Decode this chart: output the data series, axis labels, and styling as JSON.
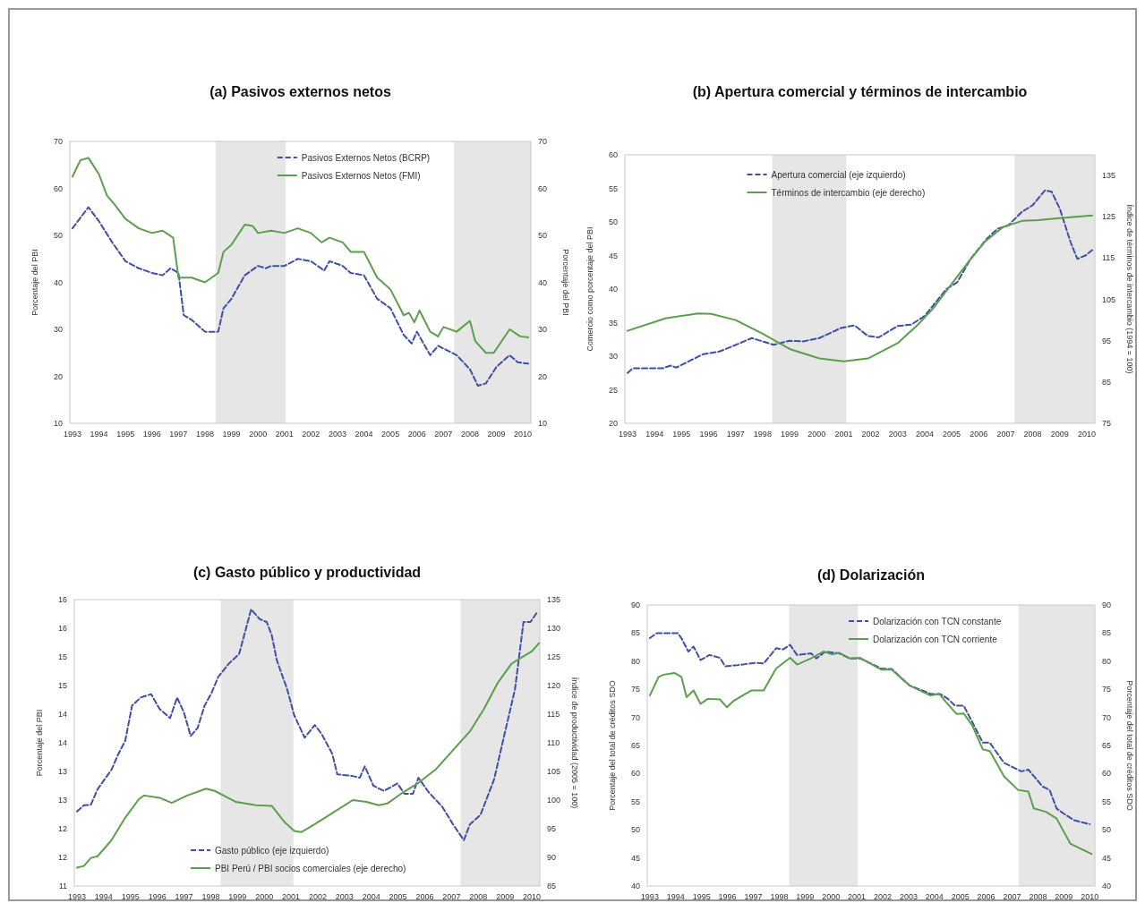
{
  "chart_data": [
    {
      "type": "line",
      "title": "(a) Pasivos externos netos",
      "ylabel": "Porcentaje del PBI",
      "y2label": "Porcentaje del PBI",
      "xlim": [
        1992.9,
        2010.3
      ],
      "xticks": [
        1993,
        1994,
        1995,
        1996,
        1997,
        1998,
        1999,
        2000,
        2001,
        2002,
        2003,
        2004,
        2005,
        2006,
        2007,
        2008,
        2009,
        2010
      ],
      "ylim": [
        10,
        70
      ],
      "yticks": [
        10,
        20,
        30,
        40,
        50,
        60,
        70
      ],
      "y2lim": [
        10,
        70
      ],
      "y2ticks": [
        10,
        20,
        30,
        40,
        50,
        60,
        70
      ],
      "legend": "top",
      "grid": false,
      "bands": [
        {
          "axis": "x",
          "from": 1998.4,
          "to": 2001.05,
          "color": "#e6e6e6"
        },
        {
          "axis": "x",
          "from": 2007.4,
          "to": 2010.3,
          "color": "#e6e6e6"
        }
      ],
      "series": [
        {
          "name": "Pasivos Externos Netos (BCRP)",
          "color": "#3f4fa6",
          "line_style": "dashed",
          "x": [
            1993,
            1993.6,
            1994,
            1994.5,
            1995,
            1995.5,
            1996,
            1996.4,
            1996.7,
            1997,
            1997.2,
            1997.5,
            1998,
            1998.5,
            1998.7,
            1999,
            1999.5,
            2000,
            2000.3,
            2000.5,
            2001,
            2001.5,
            2002,
            2002.5,
            2002.7,
            2003.2,
            2003.5,
            2004,
            2004.5,
            2005,
            2005.5,
            2005.8,
            2006,
            2006.5,
            2006.8,
            2007.5,
            2008,
            2008.3,
            2008.6,
            2009,
            2009.5,
            2009.8,
            2010.2
          ],
          "values": [
            51.5,
            56,
            53,
            48.5,
            44.5,
            43,
            42,
            41.5,
            43,
            42,
            33,
            32,
            29.5,
            29.5,
            34.5,
            36.5,
            41.5,
            43.5,
            43,
            43.5,
            43.5,
            45,
            44.5,
            42.5,
            44.5,
            43.5,
            42,
            41.5,
            36.5,
            34.5,
            28.8,
            27,
            29.5,
            24.5,
            26.5,
            24.5,
            21.5,
            18,
            18.5,
            22,
            24.5,
            23,
            22.7
          ]
        },
        {
          "name": "Pasivos Externos Netos (FMI)",
          "color": "#5c9e4c",
          "line_style": "solid",
          "x": [
            1993,
            1993.3,
            1993.6,
            1994,
            1994.3,
            1994.6,
            1995,
            1995.5,
            1996,
            1996.4,
            1996.8,
            1997,
            1997.5,
            1998,
            1998.5,
            1998.7,
            1999,
            1999.5,
            1999.8,
            2000,
            2000.5,
            2001,
            2001.5,
            2002,
            2002.4,
            2002.7,
            2003.2,
            2003.5,
            2004,
            2004.5,
            2005,
            2005.5,
            2005.7,
            2005.9,
            2006.1,
            2006.5,
            2006.8,
            2007,
            2007.5,
            2008,
            2008.2,
            2008.6,
            2008.9,
            2009.5,
            2009.9,
            2010.2
          ],
          "values": [
            62.5,
            66,
            66.5,
            63,
            58.5,
            56.5,
            53.5,
            51.5,
            50.5,
            51,
            49.5,
            41,
            41,
            40,
            42,
            46.5,
            48,
            52.3,
            52,
            50.5,
            51,
            50.5,
            51.5,
            50.5,
            48.5,
            49.5,
            48.5,
            46.5,
            46.5,
            41,
            38.5,
            33,
            33.5,
            31.5,
            34,
            29.5,
            28.5,
            30.5,
            29.5,
            31.8,
            27.5,
            25,
            25,
            30,
            28.5,
            28.3
          ]
        }
      ]
    },
    {
      "type": "line",
      "title": "(b) Apertura comercial y términos de intercambio",
      "ylabel": "Comercio como porcentaje del PBI",
      "y2label": "Índice de términos de intercambio (1994 = 100)",
      "xlim": [
        1992.9,
        2010.3
      ],
      "xticks": [
        1993,
        1994,
        1995,
        1996,
        1997,
        1998,
        1999,
        2000,
        2001,
        2002,
        2003,
        2004,
        2005,
        2006,
        2007,
        2008,
        2009,
        2010
      ],
      "ylim": [
        20,
        60
      ],
      "yticks": [
        20,
        25,
        30,
        35,
        40,
        45,
        50,
        55,
        60
      ],
      "y2lim": [
        75,
        140
      ],
      "y2ticks": [
        75,
        85,
        95,
        105,
        115,
        125,
        135
      ],
      "legend": "top left",
      "grid": false,
      "bands": [
        {
          "axis": "x",
          "from": 1998.35,
          "to": 2001.1,
          "color": "#e6e6e6"
        },
        {
          "axis": "x",
          "from": 2007.33,
          "to": 2010.3,
          "color": "#e6e6e6"
        }
      ],
      "series": [
        {
          "name": "Apertura comercial (eje izquierdo)",
          "color": "#3f4fa6",
          "line_style": "dashed",
          "x": [
            1993,
            1993.2,
            1994.3,
            1994.6,
            1994.8,
            1995.8,
            1996.4,
            1996.9,
            1997.6,
            1998.4,
            1999,
            1999.5,
            2000.1,
            2000.9,
            2001.4,
            2001.9,
            2002.3,
            2003,
            2003.5,
            2004,
            2004.8,
            2005.2,
            2005.7,
            2006.3,
            2006.7,
            2007.1,
            2007.6,
            2008,
            2008.45,
            2008.7,
            2009,
            2009.4,
            2009.65,
            2009.95,
            2010.2
          ],
          "values": [
            27.5,
            28.2,
            28.2,
            28.6,
            28.3,
            30.3,
            30.7,
            31.5,
            32.7,
            31.7,
            32.3,
            32.2,
            32.7,
            34.2,
            34.6,
            33,
            32.8,
            34.5,
            34.7,
            36,
            40,
            41,
            44.5,
            47.5,
            49,
            49.5,
            51.5,
            52.5,
            54.7,
            54.5,
            52,
            47,
            44.5,
            45,
            45.8
          ]
        },
        {
          "name": "Términos de intercambio (eje derecho)",
          "color": "#5c9e4c",
          "line_style": "solid",
          "axis": "y2",
          "x": [
            1993,
            1994.4,
            1995.6,
            1996.1,
            1997,
            1998,
            1999,
            2000.1,
            2001,
            2001.9,
            2003,
            2003.75,
            2004.3,
            2004.9,
            2005.6,
            2006.25,
            2006.9,
            2007.6,
            2008.2,
            2008.9,
            2010.2
          ],
          "values": [
            97.4,
            100.4,
            101.6,
            101.5,
            100,
            96.7,
            93,
            90.7,
            90,
            90.7,
            94.4,
            98.9,
            102.7,
            107.9,
            113.9,
            119.1,
            122.5,
            124,
            124.2,
            124.6,
            125.3
          ]
        }
      ]
    },
    {
      "type": "line",
      "title": "(c) Gasto público y productividad",
      "ylabel": "Porcentaje del PBI",
      "y2label": "Índice de productividad (2005 = 100)",
      "xlim": [
        1992.9,
        2010.3
      ],
      "xticks": [
        1993,
        1994,
        1995,
        1996,
        1997,
        1998,
        1999,
        2000,
        2001,
        2002,
        2003,
        2004,
        2005,
        2006,
        2007,
        2008,
        2009,
        2010
      ],
      "ylim": [
        11,
        16
      ],
      "yticks": [
        11,
        {
          "value": 11.5,
          "label": "12"
        },
        {
          "value": 12,
          "label": "12"
        },
        {
          "value": 12.5,
          "label": "13"
        },
        {
          "value": 13,
          "label": "13"
        },
        {
          "value": 13.5,
          "label": "14"
        },
        {
          "value": 14,
          "label": "14"
        },
        {
          "value": 14.5,
          "label": "15"
        },
        {
          "value": 15,
          "label": "15"
        },
        {
          "value": 15.5,
          "label": "16"
        },
        {
          "value": 16,
          "label": "16"
        }
      ],
      "y2lim": [
        85,
        135
      ],
      "y2ticks": [
        85,
        90,
        95,
        100,
        105,
        110,
        115,
        120,
        125,
        130,
        135
      ],
      "legend": "bottom",
      "grid": false,
      "bands": [
        {
          "axis": "x",
          "from": 1998.37,
          "to": 2001.09,
          "color": "#e6e6e6"
        },
        {
          "axis": "x",
          "from": 2007.34,
          "to": 2010.3,
          "color": "#e6e6e6"
        }
      ],
      "series": [
        {
          "name": "Gasto público (eje izquierdo)",
          "color": "#3f4fa6",
          "line_style": "dashed",
          "x": [
            1993,
            1993.26,
            1993.52,
            1993.77,
            1994.29,
            1994.55,
            1994.8,
            1995.06,
            1995.38,
            1995.77,
            1996.09,
            1996.48,
            1996.74,
            1996.99,
            1997.25,
            1997.51,
            1997.77,
            1998.03,
            1998.28,
            1998.67,
            1999.06,
            1999.51,
            1999.83,
            2000.09,
            2000.28,
            2000.47,
            2000.86,
            2001.12,
            2001.51,
            2001.89,
            2002.15,
            2002.54,
            2002.73,
            2003.31,
            2003.57,
            2003.76,
            2004.08,
            2004.47,
            2004.98,
            2005.24,
            2005.56,
            2005.76,
            2006.14,
            2006.66,
            2007.05,
            2007.46,
            2007.69,
            2008.08,
            2008.59,
            2008.98,
            2009.37,
            2009.69,
            2009.95,
            2010.2
          ],
          "values": [
            12.3,
            12.41,
            12.42,
            12.69,
            13.03,
            13.31,
            13.53,
            14.15,
            14.29,
            14.35,
            14.09,
            13.93,
            14.29,
            14.04,
            13.62,
            13.76,
            14.15,
            14.37,
            14.65,
            14.88,
            15.05,
            15.83,
            15.66,
            15.61,
            15.38,
            14.94,
            14.43,
            13.98,
            13.59,
            13.81,
            13.65,
            13.31,
            12.95,
            12.92,
            12.89,
            13.09,
            12.75,
            12.66,
            12.79,
            12.61,
            12.61,
            12.89,
            12.64,
            12.38,
            12.08,
            11.8,
            12.08,
            12.24,
            12.86,
            13.65,
            14.43,
            15.61,
            15.61,
            15.78
          ]
        },
        {
          "name": "PBI Perú / PBI socios comerciales (eje derecho)",
          "color": "#5c9e4c",
          "line_style": "solid",
          "axis": "y2",
          "x": [
            1993,
            1993.26,
            1993.52,
            1993.77,
            1994.29,
            1994.8,
            1995.32,
            1995.51,
            1996.09,
            1996.54,
            1997.12,
            1997.83,
            1998.15,
            1998.93,
            1999.7,
            2000.28,
            2000.73,
            2001.12,
            2001.38,
            2001.89,
            2002.54,
            2003.31,
            2003.82,
            2004.28,
            2004.6,
            2005.11,
            2005.76,
            2006.4,
            2007.05,
            2007.69,
            2008.21,
            2008.72,
            2009.24,
            2009.62,
            2010.01,
            2010.27
          ],
          "values": [
            88.2,
            88.5,
            89.9,
            90.2,
            93,
            96.9,
            100.2,
            100.8,
            100.4,
            99.5,
            100.8,
            102,
            101.6,
            99.7,
            99.1,
            99,
            96.3,
            94.6,
            94.4,
            95.8,
            97.7,
            100,
            99.7,
            99.1,
            99.4,
            101.1,
            103,
            105.3,
            108.7,
            112,
            115.9,
            120.4,
            123.8,
            124.9,
            126,
            127.4
          ]
        }
      ]
    },
    {
      "type": "line",
      "title": "(d) Dolarización",
      "ylabel": "Porcentaje del total de créditos SDO",
      "y2label": "Porcentaje del total de créditos SDO",
      "xlim": [
        1992.9,
        2010.2
      ],
      "xticks": [
        1993,
        1994,
        1995,
        1996,
        1997,
        1998,
        1999,
        2000,
        2001,
        2002,
        2003,
        2004,
        2005,
        2006,
        2007,
        2008,
        2009,
        2010
      ],
      "ylim": [
        40,
        90
      ],
      "yticks": [
        40,
        45,
        50,
        55,
        60,
        65,
        70,
        75,
        80,
        85,
        90
      ],
      "y2lim": [
        40,
        90
      ],
      "y2ticks": [
        40,
        45,
        50,
        55,
        60,
        65,
        70,
        75,
        80,
        85,
        90
      ],
      "legend": "top",
      "grid": false,
      "bands": [
        {
          "axis": "x",
          "from": 1998.38,
          "to": 2001.04,
          "color": "#e6e6e6"
        },
        {
          "axis": "x",
          "from": 2007.25,
          "to": 2010.2,
          "color": "#e6e6e6"
        }
      ],
      "series": [
        {
          "name": "Dolarización con TCN constante",
          "color": "#3f4fa6",
          "line_style": "dashed",
          "x": [
            1993,
            1993.27,
            1993.81,
            1994.08,
            1994.22,
            1994.49,
            1994.69,
            1994.96,
            1995.3,
            1995.71,
            1995.91,
            1996.39,
            1997.07,
            1997.4,
            1997.88,
            1998.15,
            1998.42,
            1998.69,
            1999.23,
            1999.44,
            1999.78,
            2000.32,
            2000.72,
            2001.13,
            2001.94,
            2002.35,
            2003.03,
            2003.84,
            2004.25,
            2004.52,
            2004.79,
            2005.13,
            2005.47,
            2005.87,
            2006.14,
            2006.69,
            2007.36,
            2007.63,
            2008.18,
            2008.45,
            2008.72,
            2008.99,
            2009.4,
            2010
          ],
          "values": [
            84.1,
            85,
            85,
            85,
            84.1,
            81.7,
            82.6,
            80.2,
            81.1,
            80.6,
            79.1,
            79.3,
            79.7,
            79.6,
            82.3,
            82.1,
            82.9,
            81.1,
            81.4,
            80.5,
            81.7,
            81.4,
            80.5,
            80.5,
            78.7,
            78.6,
            75.7,
            74.2,
            74.1,
            73.3,
            72.1,
            72.1,
            69.1,
            65.5,
            65.5,
            61.9,
            60.4,
            60.7,
            57.7,
            57.1,
            53.8,
            52.9,
            51.7,
            51
          ]
        },
        {
          "name": "Dolarización con TCN corriente",
          "color": "#5c9e4c",
          "line_style": "solid",
          "x": [
            1993,
            1993.34,
            1993.54,
            1993.95,
            1994.22,
            1994.42,
            1994.69,
            1994.96,
            1995.24,
            1995.71,
            1995.98,
            1996.25,
            1996.93,
            1997.4,
            1997.88,
            1998.42,
            1998.69,
            1999.23,
            1999.71,
            2000.05,
            2000.32,
            2000.72,
            2001.13,
            2001.94,
            2002.35,
            2003.03,
            2003.84,
            2004.18,
            2004.45,
            2004.86,
            2005.13,
            2005.47,
            2005.87,
            2006.14,
            2006.69,
            2007.23,
            2007.63,
            2007.84,
            2008.31,
            2008.72,
            2009.26,
            2009.53,
            2010.07
          ],
          "values": [
            73.9,
            77.2,
            77.6,
            77.9,
            77.2,
            73.6,
            74.8,
            72.4,
            73.3,
            73.2,
            71.8,
            73,
            74.8,
            74.8,
            78.7,
            80.6,
            79.4,
            80.5,
            81.7,
            81.2,
            81.5,
            80.5,
            80.6,
            78.5,
            78.5,
            75.7,
            73.9,
            74.2,
            72.7,
            70.6,
            70.7,
            68.5,
            64.3,
            64,
            59.5,
            57.1,
            56.8,
            53.8,
            53.2,
            52,
            47.5,
            46.9,
            45.7
          ]
        }
      ]
    }
  ]
}
